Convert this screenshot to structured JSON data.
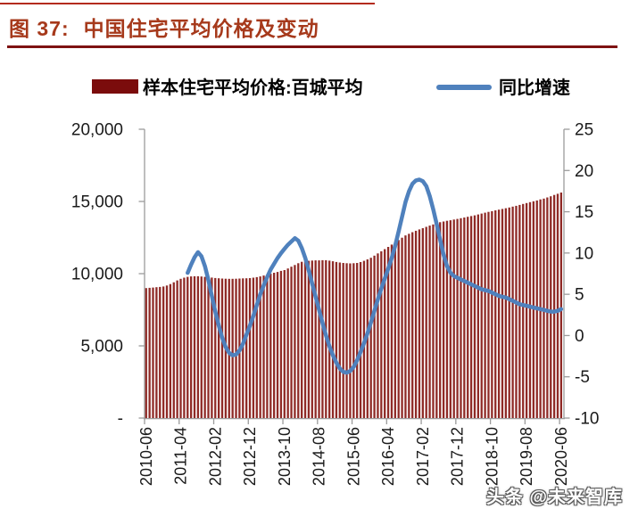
{
  "header": {
    "figure_label": "图 37:",
    "title": "中国住宅平均价格及变动"
  },
  "legend": {
    "bar_label": "样本住宅平均价格:百城平均",
    "line_label": "同比增速"
  },
  "watermark": "头条 @未来智库",
  "colors": {
    "bar": "#8F2A26",
    "legend_bar": "#7B0C0C",
    "line": "#4F81BD",
    "title": "#A6391B",
    "rule": "#7E1212",
    "top_rule": "#B42B1E",
    "axis": "#9C9C9C",
    "label": "#1A1A1A"
  },
  "chart_data": {
    "type": "bar+line",
    "x_start": "2010-06",
    "x_end": "2020-06",
    "x_freq": "monthly",
    "x_tick_labels": [
      "2010-06",
      "2011-04",
      "2012-02",
      "2012-12",
      "2013-10",
      "2014-08",
      "2015-06",
      "2016-04",
      "2017-02",
      "2017-12",
      "2018-10",
      "2019-08",
      "2020-06"
    ],
    "left_axis": {
      "labels": [
        "20,000",
        "15,000",
        "10,000",
        "5,000",
        "-"
      ],
      "values": [
        20000,
        15000,
        10000,
        5000,
        0
      ],
      "range": [
        0,
        20000
      ]
    },
    "right_axis": {
      "labels": [
        "25",
        "20",
        "15",
        "10",
        "5",
        "0",
        "-5",
        "-10"
      ],
      "values": [
        25,
        20,
        15,
        10,
        5,
        0,
        -5,
        -10
      ],
      "range": [
        -10,
        25
      ]
    },
    "series": [
      {
        "name": "样本住宅平均价格:百城平均",
        "type": "bar",
        "axis": "left",
        "start_index": 0,
        "values": [
          9000,
          9020,
          9040,
          9060,
          9080,
          9110,
          9180,
          9280,
          9400,
          9530,
          9640,
          9720,
          9780,
          9810,
          9820,
          9820,
          9800,
          9780,
          9760,
          9730,
          9700,
          9680,
          9660,
          9650,
          9640,
          9640,
          9650,
          9660,
          9670,
          9680,
          9690,
          9720,
          9760,
          9810,
          9870,
          9930,
          10000,
          10060,
          10120,
          10190,
          10250,
          10360,
          10480,
          10600,
          10720,
          10820,
          10860,
          10890,
          10910,
          10920,
          10920,
          10930,
          10930,
          10900,
          10860,
          10810,
          10770,
          10740,
          10720,
          10710,
          10720,
          10740,
          10800,
          10890,
          10990,
          11100,
          11250,
          11400,
          11550,
          11700,
          11850,
          12010,
          12170,
          12330,
          12490,
          12650,
          12760,
          12870,
          12970,
          13060,
          13150,
          13240,
          13330,
          13410,
          13490,
          13560,
          13610,
          13660,
          13700,
          13750,
          13790,
          13840,
          13890,
          13940,
          13990,
          14040,
          14100,
          14160,
          14220,
          14280,
          14330,
          14380,
          14430,
          14480,
          14530,
          14580,
          14640,
          14700,
          14760,
          14830,
          14890,
          14950,
          15010,
          15070,
          15140,
          15200,
          15280,
          15360,
          15450,
          15530,
          15620
        ]
      },
      {
        "name": "同比增速",
        "type": "line",
        "axis": "right",
        "start_index": 12,
        "values": [
          7.6,
          8.6,
          9.5,
          10.1,
          9.6,
          8.4,
          6.7,
          4.8,
          2.9,
          1.2,
          -0.3,
          -1.4,
          -2.1,
          -2.4,
          -2.3,
          -1.8,
          -1.0,
          0.1,
          1.2,
          2.4,
          3.7,
          5.0,
          6.1,
          7.1,
          8.0,
          8.7,
          9.4,
          10.0,
          10.5,
          11.0,
          11.4,
          11.8,
          11.5,
          10.6,
          9.4,
          7.9,
          6.3,
          4.7,
          3.1,
          1.5,
          0.0,
          -1.3,
          -2.4,
          -3.3,
          -4.0,
          -4.4,
          -4.5,
          -4.3,
          -3.8,
          -3.0,
          -2.0,
          -0.9,
          0.3,
          1.6,
          3.0,
          4.4,
          5.7,
          6.9,
          8.1,
          9.4,
          10.9,
          12.6,
          14.4,
          16.2,
          17.5,
          18.4,
          18.8,
          18.9,
          18.7,
          18.1,
          16.9,
          15.3,
          13.5,
          11.6,
          9.8,
          8.4,
          7.6,
          7.2,
          7.0,
          6.8,
          6.6,
          6.4,
          6.2,
          6.0,
          5.8,
          5.6,
          5.5,
          5.4,
          5.2,
          5.0,
          4.8,
          4.7,
          4.6,
          4.4,
          4.2,
          4.0,
          3.8,
          3.7,
          3.6,
          3.5,
          3.4,
          3.3,
          3.2,
          3.1,
          3.0,
          2.9,
          2.9,
          3.0,
          3.2
        ]
      }
    ]
  }
}
